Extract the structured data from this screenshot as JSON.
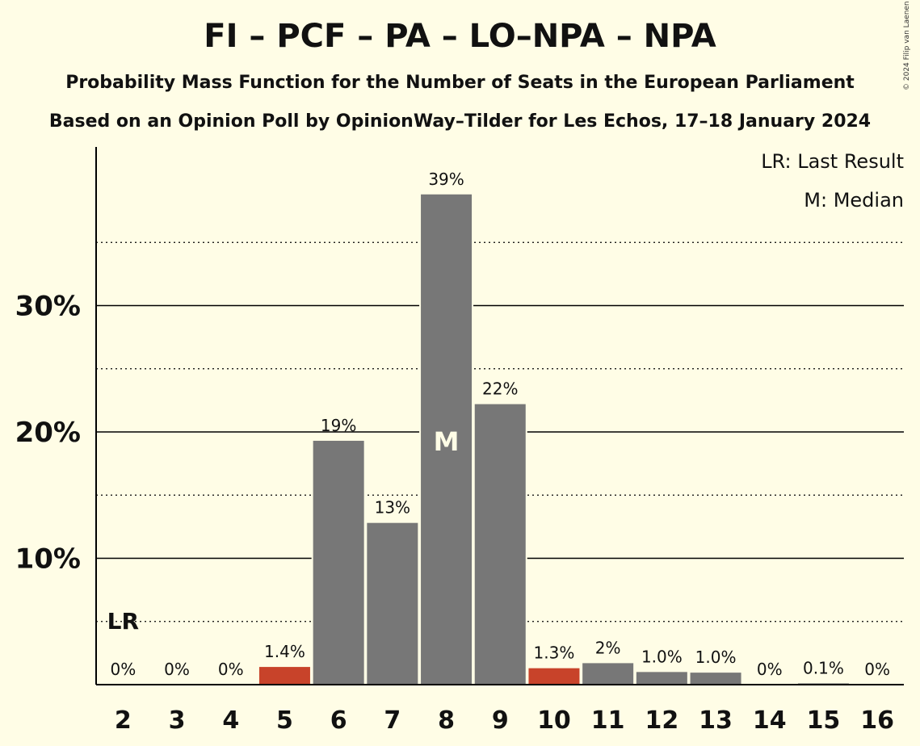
{
  "chart_data": {
    "type": "bar",
    "title": "FI – PCF – PA – LO–NPA – NPA",
    "subtitle": "Probability Mass Function for the Number of Seats in the European Parliament",
    "source": "Based on an Opinion Poll by OpinionWay–Tilder for Les Echos, 17–18 January 2024",
    "copyright": "© 2024 Filip van Laenen",
    "categories": [
      "2",
      "3",
      "4",
      "5",
      "6",
      "7",
      "8",
      "9",
      "10",
      "11",
      "12",
      "13",
      "14",
      "15",
      "16"
    ],
    "values": [
      0,
      0,
      0,
      1.4,
      19.3,
      12.8,
      38.8,
      22.2,
      1.3,
      1.7,
      1.0,
      0.95,
      0,
      0.1,
      0
    ],
    "labels": [
      "0%",
      "0%",
      "0%",
      "1.4%",
      "19%",
      "13%",
      "39%",
      "22%",
      "1.3%",
      "2%",
      "1.0%",
      "1.0%",
      "0%",
      "0.1%",
      "0%"
    ],
    "highlight_colors": [
      "#777777",
      "#777777",
      "#777777",
      "#C8432A",
      "#777777",
      "#777777",
      "#777777",
      "#777777",
      "#C8432A",
      "#777777",
      "#777777",
      "#777777",
      "#777777",
      "#777777",
      "#777777"
    ],
    "yticks": [
      {
        "value": 10,
        "label": "10%"
      },
      {
        "value": 20,
        "label": "20%"
      },
      {
        "value": 30,
        "label": "30%"
      }
    ],
    "ylim": [
      0,
      42.5
    ],
    "grid_minor": [
      5,
      15,
      25,
      35
    ],
    "last_result": {
      "category": "2",
      "label": "LR"
    },
    "median": {
      "category": "8",
      "label": "M"
    },
    "legend": {
      "lr": "LR: Last Result",
      "m": "M: Median",
      "placement": "top-right"
    },
    "colors": {
      "bar": "#777777",
      "highlight": "#C8432A",
      "background": "#FFFDE6"
    }
  }
}
